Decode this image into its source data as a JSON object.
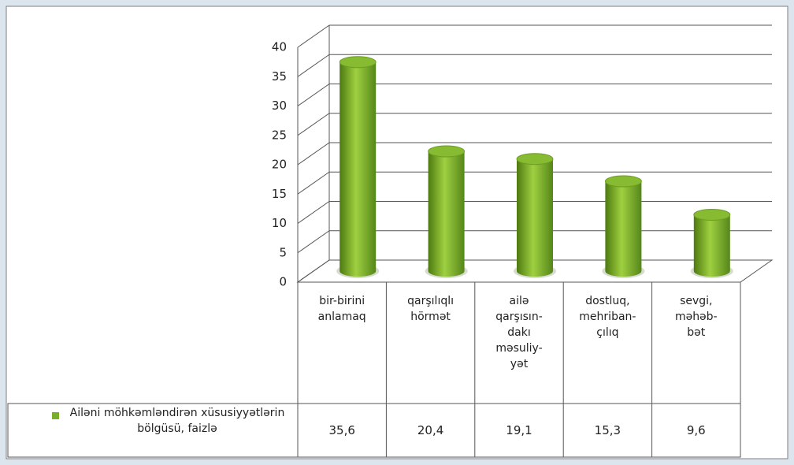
{
  "chart_data": {
    "type": "bar",
    "categories": [
      "bir-birini\nanlamaq",
      "qarşılıqlı\nhörmət",
      "ailə\nqarşısın-\ndakı\nməsuliy-\nyət",
      "dostluq,\nmehriban-\nçılıq",
      "sevgi,\nməhəb-\nbət"
    ],
    "series": [
      {
        "name": "Ailəni möhkəmləndirən xüsusiyyətlərin bölgüsü, faizlə",
        "color": "#7aad2a",
        "values": [
          35.6,
          20.4,
          19.1,
          15.3,
          9.6
        ],
        "value_labels": [
          "35,6",
          "20,4",
          "19,1",
          "15,3",
          "9,6"
        ]
      }
    ],
    "ylim": [
      0,
      40
    ],
    "yticks": [
      0,
      5,
      10,
      15,
      20,
      25,
      30,
      35,
      40
    ],
    "grid": true
  }
}
